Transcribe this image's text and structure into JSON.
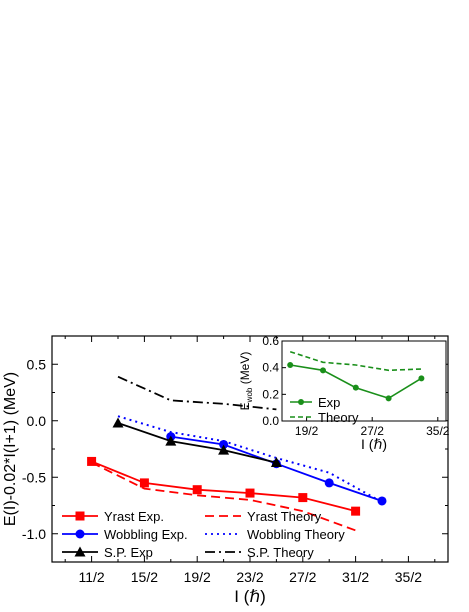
{
  "chart_data": [
    {
      "type": "line",
      "xlabel": "I (ℏ)",
      "ylabel": "E(I)-0.02*I(I+1) (MeV)",
      "xlim": [
        4,
        19
      ],
      "ylim": [
        -1.25,
        0.75
      ],
      "xticks": [
        5.5,
        7.5,
        9.5,
        11.5,
        13.5,
        15.5,
        17.5
      ],
      "xtick_labels": [
        "11/2",
        "15/2",
        "19/2",
        "23/2",
        "27/2",
        "31/2",
        "35/2"
      ],
      "yticks": [
        -1.0,
        -0.5,
        0.0,
        0.5
      ],
      "ytick_labels": [
        "-1.0",
        "-0.5",
        "0.0",
        "0.5"
      ],
      "grid": false,
      "legend_position": "bottom-left",
      "series": [
        {
          "name": "Yrast Exp.",
          "color": "#ff0000",
          "style": "solid",
          "marker": "square",
          "x": [
            5.5,
            7.5,
            9.5,
            11.5,
            13.5,
            15.5
          ],
          "y": [
            -0.36,
            -0.55,
            -0.61,
            -0.64,
            -0.68,
            -0.8
          ]
        },
        {
          "name": "Yrast Theory",
          "color": "#ff0000",
          "style": "dashed",
          "marker": "none",
          "x": [
            5.5,
            7.5,
            9.5,
            11.5,
            13.5,
            15.5
          ],
          "y": [
            -0.37,
            -0.6,
            -0.66,
            -0.7,
            -0.8,
            -0.97
          ]
        },
        {
          "name": "Wobbling Exp.",
          "color": "#0000ff",
          "style": "solid",
          "marker": "circle",
          "x": [
            8.5,
            10.5,
            12.5,
            14.5,
            16.5
          ],
          "y": [
            -0.14,
            -0.21,
            -0.38,
            -0.55,
            -0.71
          ]
        },
        {
          "name": "Wobbling Theory",
          "color": "#0000ff",
          "style": "dotted",
          "marker": "none",
          "x": [
            6.5,
            8.5,
            10.5,
            12.5,
            14.5,
            16.5
          ],
          "y": [
            0.04,
            -0.1,
            -0.18,
            -0.33,
            -0.46,
            -0.72
          ]
        },
        {
          "name": "S.P. Exp",
          "color": "#000000",
          "style": "solid",
          "marker": "triangle",
          "x": [
            6.5,
            8.5,
            10.5,
            12.5
          ],
          "y": [
            -0.02,
            -0.18,
            -0.26,
            -0.37
          ]
        },
        {
          "name": "S.P. Theory",
          "color": "#000000",
          "style": "dashdot",
          "marker": "none",
          "x": [
            6.5,
            8.5,
            10.5,
            12.5
          ],
          "y": [
            0.39,
            0.18,
            0.15,
            0.1
          ]
        }
      ]
    },
    {
      "type": "line",
      "inset": true,
      "xlabel": "I (ℏ)",
      "ylabel": "E",
      "ylabel_subscript": "wob",
      "ylabel_unit": "(MeV)",
      "xlim": [
        8,
        18
      ],
      "ylim": [
        0.0,
        0.6
      ],
      "xticks": [
        9.5,
        13.5,
        17.5
      ],
      "xtick_labels": [
        "19/2",
        "27/2",
        "35/2"
      ],
      "yticks": [
        0.0,
        0.2,
        0.4,
        0.6
      ],
      "ytick_labels": [
        "0.0",
        "0.2",
        "0.4",
        "0.6"
      ],
      "legend_position": "bottom-left",
      "series": [
        {
          "name": "Exp",
          "color": "#1a8f1a",
          "style": "solid",
          "marker": "circle",
          "x": [
            8.5,
            10.5,
            12.5,
            14.5,
            16.5
          ],
          "y": [
            0.42,
            0.38,
            0.25,
            0.17,
            0.32
          ]
        },
        {
          "name": "Theory",
          "color": "#1a8f1a",
          "style": "dashed",
          "marker": "none",
          "x": [
            8.5,
            10.5,
            12.5,
            14.5,
            16.5
          ],
          "y": [
            0.52,
            0.44,
            0.42,
            0.38,
            0.39
          ]
        }
      ]
    }
  ]
}
